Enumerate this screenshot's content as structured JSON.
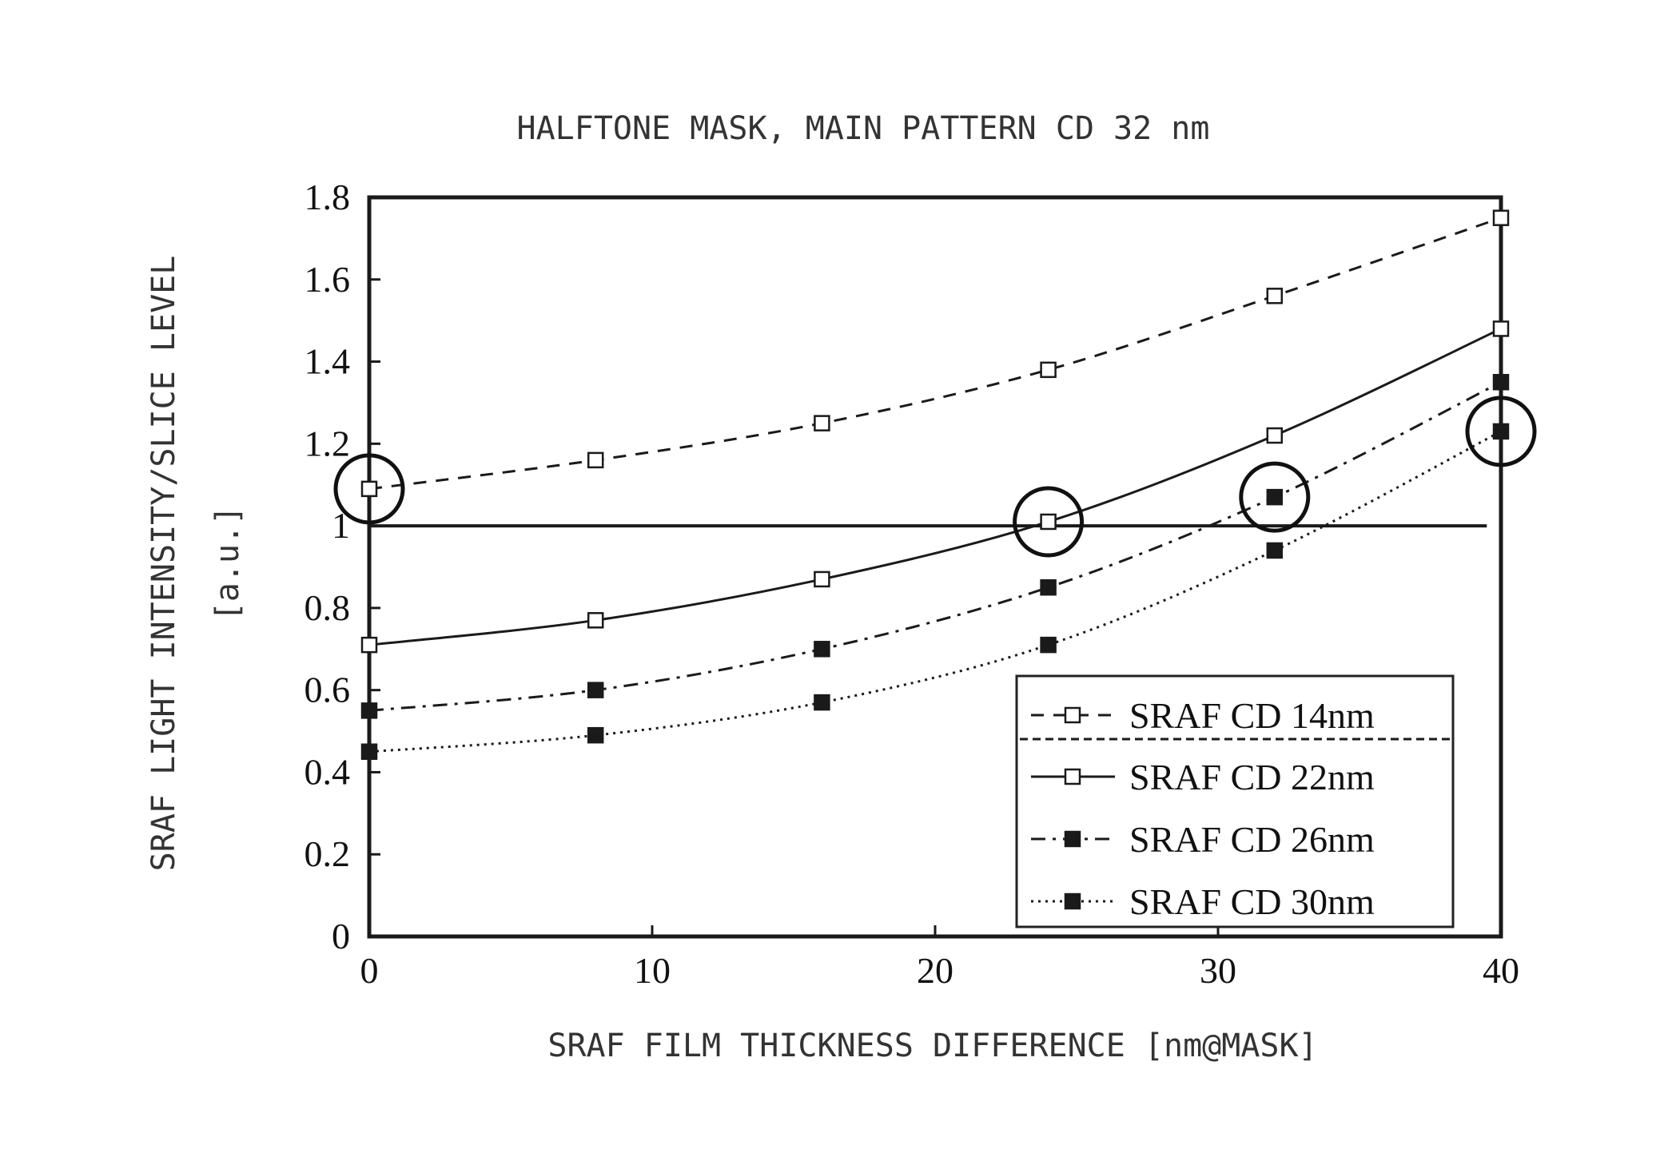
{
  "chart_data": {
    "type": "line",
    "title": "HALFTONE MASK, MAIN PATTERN CD 32 nm",
    "xlabel": "SRAF FILM THICKNESS DIFFERENCE [nm@MASK]",
    "ylabel": "SRAF LIGHT INTENSITY/SLICE LEVEL",
    "ylabel_unit": "[a.u.]",
    "xlim": [
      0,
      40
    ],
    "ylim": [
      0,
      1.8
    ],
    "x_ticks": [
      "0",
      "10",
      "20",
      "30",
      "40"
    ],
    "y_ticks": [
      "0",
      "0.2",
      "0.4",
      "0.6",
      "0.8",
      "1",
      "1.2",
      "1.4",
      "1.6",
      "1.8"
    ],
    "grid": false,
    "legend_position": "bottom-right",
    "reference_line": {
      "y": 1.0
    },
    "circled_points": [
      {
        "x": 0,
        "y": 1.09
      },
      {
        "x": 24,
        "y": 1.01
      },
      {
        "x": 32,
        "y": 1.07
      },
      {
        "x": 40,
        "y": 1.23
      }
    ],
    "series": [
      {
        "name": "SRAF CD 14nm",
        "line": "dashed",
        "marker": "open-square",
        "x": [
          0,
          8,
          16,
          24,
          32,
          40
        ],
        "y": [
          1.09,
          1.16,
          1.25,
          1.38,
          1.56,
          1.75
        ]
      },
      {
        "name": "SRAF CD 22nm",
        "line": "solid",
        "marker": "open-square",
        "x": [
          0,
          8,
          16,
          24,
          32,
          40
        ],
        "y": [
          0.71,
          0.77,
          0.87,
          1.01,
          1.22,
          1.48
        ]
      },
      {
        "name": "SRAF CD 26nm",
        "line": "dash-dot",
        "marker": "filled-square",
        "x": [
          0,
          8,
          16,
          24,
          32,
          40
        ],
        "y": [
          0.55,
          0.6,
          0.7,
          0.85,
          1.07,
          1.35
        ]
      },
      {
        "name": "SRAF CD 30nm",
        "line": "dotted",
        "marker": "filled-square",
        "x": [
          0,
          8,
          16,
          24,
          32,
          40
        ],
        "y": [
          0.45,
          0.49,
          0.57,
          0.71,
          0.94,
          1.23
        ]
      }
    ]
  }
}
